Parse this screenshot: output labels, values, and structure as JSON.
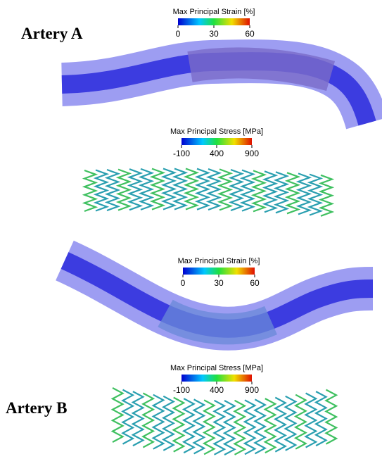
{
  "panels": [
    {
      "label": "Artery A",
      "colorbars": [
        {
          "title": "Max Principal Strain [%]",
          "range": [
            0,
            60
          ],
          "ticks": [
            0,
            30,
            60
          ]
        },
        {
          "title": "Max Principal Stress [MPa]",
          "range": [
            -100,
            900
          ],
          "ticks": [
            -100,
            400,
            900
          ]
        }
      ]
    },
    {
      "label": "Artery B",
      "colorbars": [
        {
          "title": "Max Principal Strain [%]",
          "range": [
            0,
            60
          ],
          "ticks": [
            0,
            30,
            60
          ]
        },
        {
          "title": "Max Principal Stress [MPa]",
          "range": [
            -100,
            900
          ],
          "ticks": [
            -100,
            400,
            900
          ]
        }
      ]
    }
  ]
}
